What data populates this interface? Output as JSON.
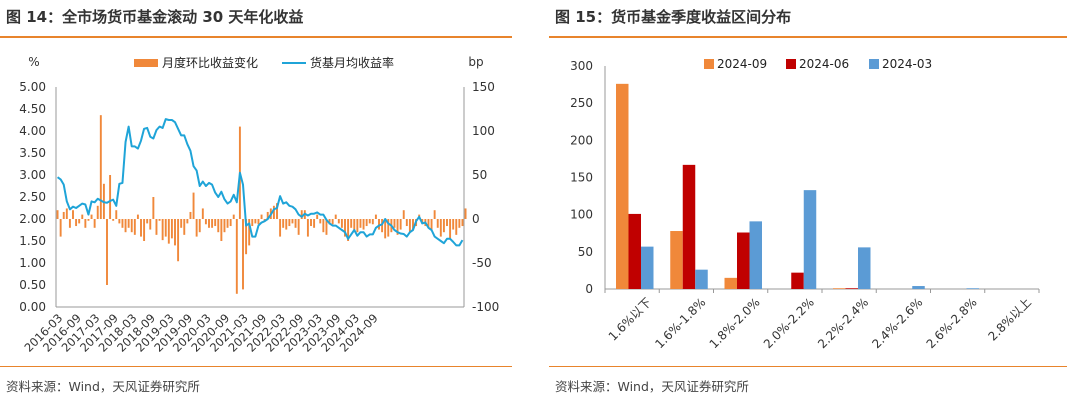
{
  "left": {
    "title": "图 14：全市场货币基金滚动 30 天年化收益",
    "source": "资料来源：Wind，天风证券研究所"
  },
  "right": {
    "title": "图 15：货币基金季度收益区间分布",
    "source": "资料来源：Wind，天风证券研究所"
  },
  "colors": {
    "accent_line": "#e8842c",
    "bar_orange": "#f0883a",
    "line_blue": "#1fa4d8",
    "q_2024_09": "#f0883a",
    "q_2024_06": "#c00000",
    "q_2024_03": "#5b9bd5"
  },
  "chart_data": [
    {
      "type": "bar+line",
      "title": "全市场货币基金滚动 30 天年化收益",
      "ylabel_left": "%",
      "ylabel_right": "bp",
      "ylim_left": [
        0,
        5
      ],
      "ylim_right": [
        -100,
        150
      ],
      "yticks_left": [
        "0.00",
        "0.50",
        "1.00",
        "1.50",
        "2.00",
        "2.50",
        "3.00",
        "3.50",
        "4.00",
        "4.50",
        "5.00"
      ],
      "yticks_right": [
        "-100",
        "-50",
        "0",
        "50",
        "100",
        "150"
      ],
      "x_start": "2016-03",
      "xtick_labels": [
        "2016-03",
        "2016-09",
        "2017-03",
        "2017-09",
        "2018-03",
        "2018-09",
        "2019-03",
        "2019-09",
        "2020-03",
        "2020-09",
        "2021-03",
        "2021-09",
        "2022-03",
        "2022-09",
        "2023-03",
        "2023-09",
        "2024-03",
        "2024-09"
      ],
      "legend": [
        "月度环比收益变化",
        "货基月均收益率"
      ],
      "legend_position": "top",
      "series": [
        {
          "name": "月度环比收益变化",
          "axis": "right",
          "kind": "bar",
          "values": [
            10,
            -20,
            8,
            12,
            -10,
            10,
            -8,
            -5,
            5,
            -10,
            -2,
            5,
            -10,
            15,
            118,
            40,
            -75,
            50,
            -2,
            10,
            -5,
            -10,
            -15,
            -10,
            -15,
            -18,
            5,
            -20,
            -25,
            -5,
            -12,
            25,
            -18,
            -2,
            -24,
            -20,
            -28,
            -22,
            -30,
            -48,
            -10,
            -18,
            -5,
            8,
            30,
            -20,
            -15,
            12,
            -6,
            -10,
            -10,
            -8,
            -15,
            -25,
            -15,
            -10,
            -8,
            5,
            -85,
            105,
            -80,
            -40,
            -30,
            -8,
            -5,
            -6,
            5,
            -3,
            8,
            12,
            15,
            18,
            -20,
            -10,
            -12,
            -8,
            -5,
            -10,
            -18,
            10,
            10,
            -20,
            -8,
            -10,
            5,
            -5,
            -15,
            -18,
            -6,
            -6,
            5,
            -5,
            -10,
            -20,
            -25,
            -10,
            -12,
            -15,
            -10,
            -12,
            -8,
            -5,
            -6,
            5,
            -12,
            -15,
            -22,
            -20,
            -15,
            -10,
            -18,
            -12,
            10,
            -8,
            -15,
            -12,
            -8,
            5,
            -5,
            -8,
            -10,
            -12,
            10,
            -10,
            -20,
            -15,
            -8,
            -22,
            -12,
            -18,
            -10,
            -8,
            12
          ]
        },
        {
          "name": "货基月均收益率",
          "axis": "left",
          "kind": "line",
          "values": [
            2.95,
            2.9,
            2.78,
            2.4,
            2.22,
            2.28,
            2.25,
            2.3,
            2.35,
            2.33,
            2.1,
            2.4,
            2.38,
            2.46,
            2.42,
            2.38,
            2.37,
            2.41,
            2.44,
            2.3,
            2.8,
            2.82,
            3.75,
            4.1,
            3.65,
            3.65,
            3.6,
            3.78,
            4.05,
            4.07,
            3.87,
            3.83,
            4.02,
            4.1,
            4.07,
            4.27,
            4.25,
            4.25,
            4.2,
            4.05,
            3.9,
            3.9,
            3.7,
            3.55,
            3.2,
            3.1,
            2.75,
            2.85,
            2.75,
            2.82,
            2.78,
            2.6,
            2.5,
            2.62,
            2.45,
            2.35,
            2.4,
            2.55,
            2.38,
            3.05,
            2.78,
            1.85,
            1.9,
            1.6,
            1.6,
            1.85,
            1.92,
            1.95,
            2.0,
            2.1,
            2.22,
            2.25,
            2.52,
            2.35,
            2.38,
            2.3,
            2.28,
            2.22,
            2.1,
            2.05,
            2.12,
            2.08,
            2.12,
            2.12,
            2.15,
            2.1,
            2.1,
            1.98,
            1.9,
            1.85,
            1.85,
            1.8,
            1.75,
            1.7,
            1.55,
            1.65,
            1.75,
            1.62,
            1.7,
            1.7,
            1.6,
            1.65,
            1.65,
            1.8,
            1.85,
            1.88,
            2.0,
            1.9,
            1.85,
            1.75,
            1.7,
            1.67,
            1.66,
            1.6,
            1.7,
            1.75,
            1.95,
            2.05,
            1.9,
            1.92,
            1.8,
            1.75,
            1.6,
            1.55,
            1.5,
            1.45,
            1.55,
            1.55,
            1.48,
            1.4,
            1.4,
            1.52
          ]
        }
      ]
    },
    {
      "type": "bar",
      "title": "货币基金季度收益区间分布",
      "categories": [
        "1.6%以下",
        "1.6%-1.8%",
        "1.8%-2.0%",
        "2.0%-2.2%",
        "2.2%-2.4%",
        "2.4%-2.6%",
        "2.6%-2.8%",
        "2.8%以上"
      ],
      "ylim": [
        0,
        300
      ],
      "yticks": [
        "0",
        "50",
        "100",
        "150",
        "200",
        "250",
        "300"
      ],
      "legend_position": "top",
      "series": [
        {
          "name": "2024-09",
          "values": [
            276,
            78,
            15,
            0,
            1,
            0,
            0,
            0
          ]
        },
        {
          "name": "2024-06",
          "values": [
            101,
            167,
            76,
            22,
            1,
            0,
            0,
            0
          ]
        },
        {
          "name": "2024-03",
          "values": [
            57,
            26,
            91,
            133,
            56,
            4,
            1,
            0
          ]
        }
      ]
    }
  ]
}
